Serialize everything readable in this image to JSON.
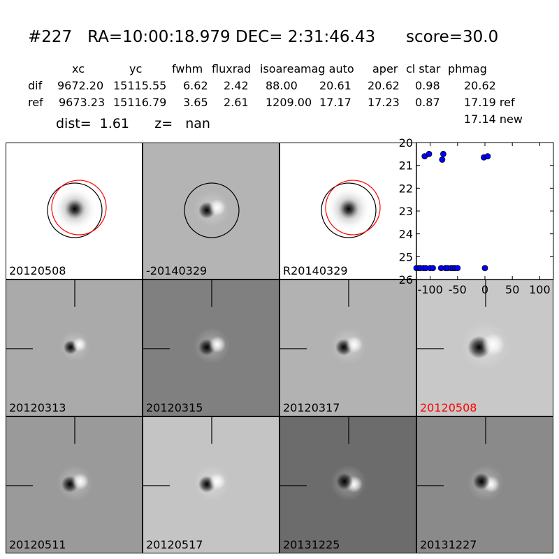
{
  "header": {
    "title": "#227   RA=10:00:18.979 DEC= 2:31:46.43      score=30.0",
    "columns": [
      "xc",
      "yc",
      "fwhm",
      "fluxrad",
      "isoarea",
      "mag auto",
      "aper",
      "cl star",
      "phmag"
    ],
    "rows": [
      {
        "label": "dif",
        "values": [
          "9672.20",
          "15115.55",
          "6.62",
          "2.42",
          "88.00",
          "20.61",
          "20.62",
          "0.98",
          "20.62"
        ]
      },
      {
        "label": "ref",
        "values": [
          "9673.23",
          "15116.79",
          "3.65",
          "2.61",
          "1209.00",
          "17.17",
          "17.23",
          "0.87",
          "17.19 ref"
        ]
      }
    ],
    "extra_phmag": "17.14 new",
    "dist_line": "dist=  1.61      z=   nan"
  },
  "panels": [
    {
      "label": "20120508",
      "bg": "#ffffff",
      "kind": "ref",
      "circles": true,
      "label_color": "#000000"
    },
    {
      "label": "-20140329",
      "bg": "#b4b4b4",
      "kind": "dipole",
      "circles": "black",
      "label_color": "#000000"
    },
    {
      "label": "R20140329",
      "bg": "#ffffff",
      "kind": "ref",
      "circles": true,
      "label_color": "#000000"
    },
    {
      "label": "20120313",
      "bg": "#aaaaaa",
      "kind": "dipole-small",
      "crosshair": true,
      "label_color": "#000000"
    },
    {
      "label": "20120315",
      "bg": "#808080",
      "kind": "dipole",
      "crosshair": true,
      "label_color": "#000000"
    },
    {
      "label": "20120317",
      "bg": "#b2b2b2",
      "kind": "dipole",
      "crosshair": true,
      "label_color": "#000000"
    },
    {
      "label": "20120508",
      "bg": "#c8c8c8",
      "kind": "dipole-big",
      "crosshair": true,
      "label_color": "#ff0000"
    },
    {
      "label": "20120511",
      "bg": "#9a9a9a",
      "kind": "dipole",
      "crosshair": true,
      "label_color": "#000000"
    },
    {
      "label": "20120517",
      "bg": "#c4c4c4",
      "kind": "dipole",
      "crosshair": true,
      "label_color": "#000000"
    },
    {
      "label": "20131225",
      "bg": "#6c6c6c",
      "kind": "dipole-rev",
      "crosshair": true,
      "label_color": "#000000"
    },
    {
      "label": "20131227",
      "bg": "#8a8a8a",
      "kind": "dipole-rev",
      "crosshair": true,
      "label_color": "#000000"
    }
  ],
  "chart_data": {
    "type": "scatter",
    "x": [
      -128,
      -120,
      -118,
      -112,
      -110,
      -108,
      -102,
      -100,
      -95,
      -80,
      -78,
      -76,
      -72,
      -68,
      -62,
      -58,
      -55,
      -50,
      -2,
      0,
      5
    ],
    "y": [
      25.5,
      25.5,
      25.5,
      25.5,
      20.6,
      25.5,
      20.5,
      25.5,
      25.5,
      25.5,
      20.75,
      20.5,
      25.5,
      25.5,
      25.5,
      25.5,
      25.5,
      25.5,
      20.65,
      25.5,
      20.6
    ],
    "xlim": [
      -125,
      125
    ],
    "ylim": [
      26,
      20
    ],
    "xticks": [
      "-100",
      "-50",
      "0",
      "50",
      "100"
    ],
    "yticks": [
      "20",
      "21",
      "22",
      "23",
      "24",
      "25",
      "26"
    ],
    "marker_color": "#0000ff"
  }
}
